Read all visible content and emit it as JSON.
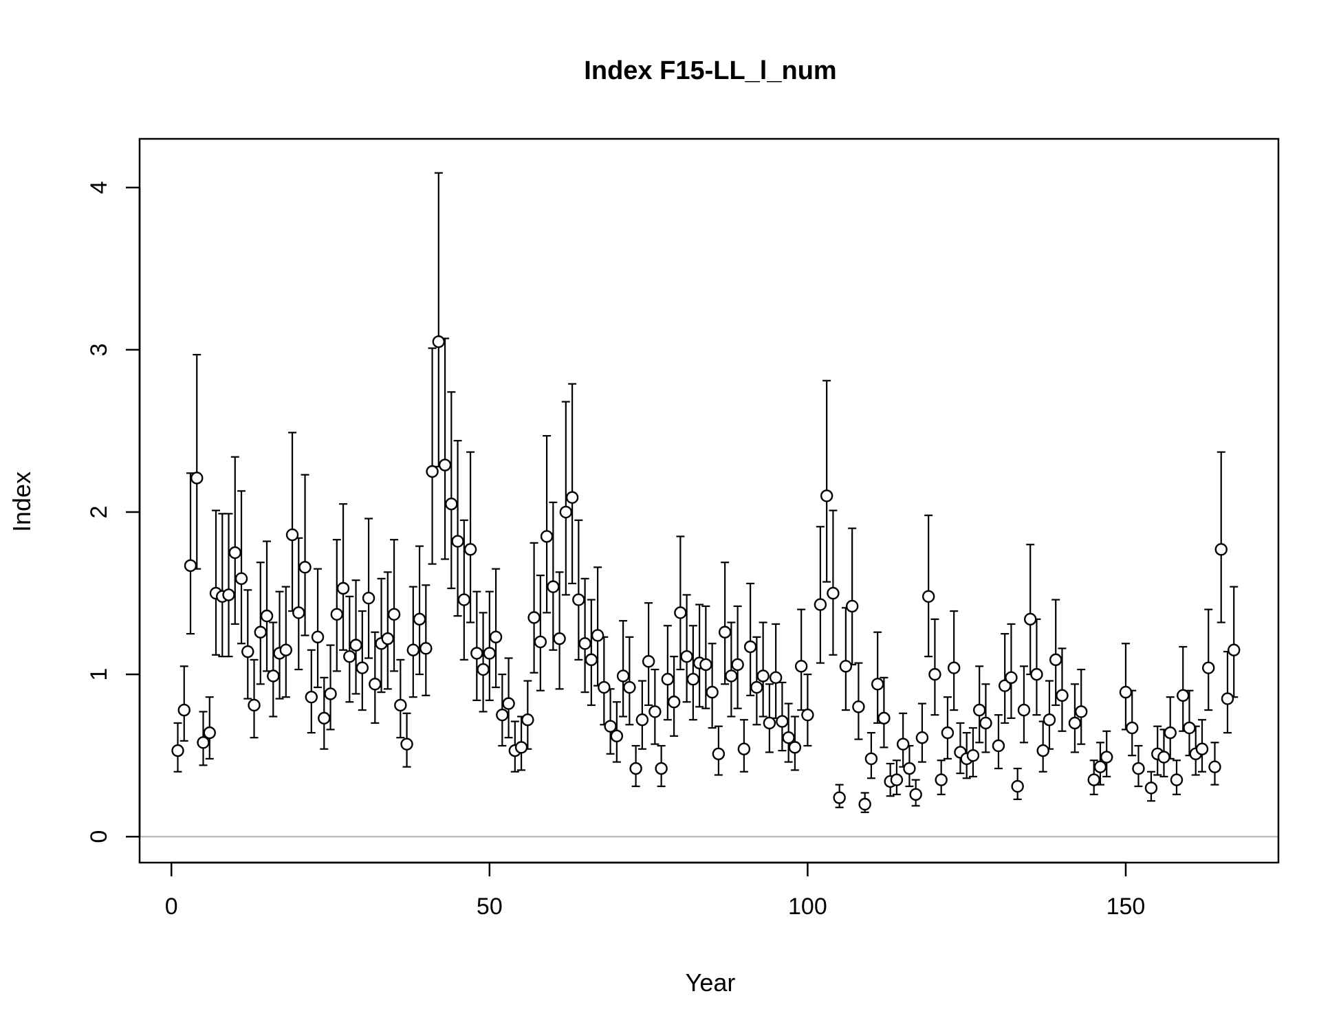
{
  "chart_data": {
    "type": "scatter",
    "title": "Index F15-LL_l_num",
    "xlabel": "Year",
    "ylabel": "Index",
    "xlim": [
      -5,
      174
    ],
    "ylim": [
      -0.16,
      4.3
    ],
    "x_ticks": [
      0,
      50,
      100,
      150
    ],
    "x_tick_labels": [
      "0",
      "50",
      "100",
      "150"
    ],
    "y_ticks": [
      0,
      1,
      2,
      3,
      4
    ],
    "y_tick_labels": [
      "0",
      "1",
      "2",
      "3",
      "4"
    ],
    "reference_line_y": 0,
    "colors": {
      "points": "#000000",
      "fill": "#ffffff",
      "reference_line": "#bebebe"
    },
    "x": [
      1,
      2,
      3,
      4,
      5,
      6,
      7,
      8,
      9,
      10,
      11,
      12,
      13,
      14,
      15,
      16,
      17,
      18,
      19,
      20,
      21,
      22,
      23,
      24,
      25,
      26,
      27,
      28,
      29,
      30,
      31,
      32,
      33,
      34,
      35,
      36,
      37,
      38,
      39,
      40,
      41,
      42,
      43,
      44,
      45,
      46,
      47,
      48,
      49,
      50,
      51,
      52,
      53,
      54,
      55,
      56,
      57,
      58,
      59,
      60,
      61,
      62,
      63,
      64,
      65,
      66,
      67,
      68,
      69,
      70,
      71,
      72,
      73,
      74,
      75,
      76,
      77,
      78,
      79,
      80,
      81,
      82,
      83,
      84,
      85,
      86,
      87,
      88,
      89,
      90,
      91,
      92,
      93,
      94,
      95,
      96,
      97,
      98,
      99,
      100,
      102,
      103,
      104,
      105,
      106,
      107,
      108,
      109,
      110,
      111,
      112,
      113,
      114,
      115,
      116,
      117,
      118,
      119,
      120,
      121,
      122,
      123,
      124,
      125,
      126,
      127,
      128,
      130,
      131,
      132,
      133,
      134,
      135,
      136,
      137,
      138,
      139,
      140,
      142,
      143,
      145,
      146,
      147,
      150,
      151,
      152,
      154,
      155,
      156,
      157,
      158,
      159,
      160,
      161,
      162,
      163,
      164,
      165,
      166,
      167
    ],
    "y": [
      0.53,
      0.78,
      1.67,
      2.21,
      0.58,
      0.64,
      1.5,
      1.48,
      1.49,
      1.75,
      1.59,
      1.14,
      0.81,
      1.26,
      1.36,
      0.99,
      1.13,
      1.15,
      1.86,
      1.38,
      1.66,
      0.86,
      1.23,
      0.73,
      0.88,
      1.37,
      1.53,
      1.11,
      1.18,
      1.04,
      1.47,
      0.94,
      1.19,
      1.22,
      1.37,
      0.81,
      0.57,
      1.15,
      1.34,
      1.16,
      2.25,
      3.05,
      2.29,
      2.05,
      1.82,
      1.46,
      1.77,
      1.13,
      1.03,
      1.13,
      1.23,
      0.75,
      0.82,
      0.53,
      0.55,
      0.72,
      1.35,
      1.2,
      1.85,
      1.54,
      1.22,
      2.0,
      2.09,
      1.46,
      1.19,
      1.09,
      1.24,
      0.92,
      0.68,
      0.62,
      0.99,
      0.92,
      0.42,
      0.72,
      1.08,
      0.77,
      0.42,
      0.97,
      0.83,
      1.38,
      1.11,
      0.97,
      1.07,
      1.06,
      0.89,
      0.51,
      1.26,
      0.99,
      1.06,
      0.54,
      1.17,
      0.92,
      0.99,
      0.7,
      0.98,
      0.71,
      0.61,
      0.55,
      1.05,
      0.75,
      1.43,
      2.1,
      1.5,
      0.24,
      1.05,
      1.42,
      0.8,
      0.2,
      0.48,
      0.94,
      0.73,
      0.34,
      0.35,
      0.57,
      0.42,
      0.26,
      0.61,
      1.48,
      1.0,
      0.35,
      0.64,
      1.04,
      0.52,
      0.48,
      0.5,
      0.78,
      0.7,
      0.56,
      0.93,
      0.98,
      0.31,
      0.78,
      1.34,
      1.0,
      0.53,
      0.72,
      1.09,
      0.87,
      0.7,
      0.77,
      0.35,
      0.43,
      0.49,
      0.89,
      0.67,
      0.42,
      0.3,
      0.51,
      0.49,
      0.64,
      0.35,
      0.87,
      0.67,
      0.51,
      0.54,
      1.04,
      0.43,
      1.77,
      0.85,
      1.15
    ],
    "lower": [
      0.4,
      0.59,
      1.25,
      1.65,
      0.44,
      0.48,
      1.12,
      1.11,
      1.11,
      1.31,
      1.19,
      0.85,
      0.61,
      0.94,
      1.02,
      0.74,
      0.85,
      0.86,
      1.39,
      1.03,
      1.24,
      0.64,
      0.92,
      0.54,
      0.66,
      1.02,
      1.15,
      0.83,
      0.88,
      0.78,
      1.1,
      0.7,
      0.89,
      0.91,
      1.02,
      0.61,
      0.43,
      0.86,
      1.0,
      0.87,
      1.68,
      2.28,
      1.71,
      1.53,
      1.36,
      1.09,
      1.32,
      0.84,
      0.77,
      0.84,
      0.92,
      0.56,
      0.61,
      0.4,
      0.41,
      0.54,
      1.01,
      0.9,
      1.38,
      1.15,
      0.91,
      1.49,
      1.56,
      1.09,
      0.89,
      0.81,
      0.93,
      0.69,
      0.51,
      0.46,
      0.74,
      0.69,
      0.31,
      0.54,
      0.81,
      0.57,
      0.31,
      0.72,
      0.62,
      1.03,
      0.83,
      0.72,
      0.8,
      0.79,
      0.67,
      0.38,
      0.94,
      0.74,
      0.79,
      0.4,
      0.87,
      0.69,
      0.74,
      0.52,
      0.73,
      0.53,
      0.46,
      0.41,
      0.78,
      0.56,
      1.07,
      1.57,
      1.12,
      0.18,
      0.78,
      1.06,
      0.6,
      0.15,
      0.36,
      0.7,
      0.55,
      0.25,
      0.26,
      0.43,
      0.31,
      0.19,
      0.46,
      1.11,
      0.75,
      0.26,
      0.48,
      0.78,
      0.39,
      0.36,
      0.37,
      0.58,
      0.52,
      0.42,
      0.7,
      0.73,
      0.23,
      0.58,
      1.0,
      0.75,
      0.4,
      0.54,
      0.81,
      0.65,
      0.52,
      0.57,
      0.26,
      0.32,
      0.37,
      0.66,
      0.5,
      0.31,
      0.22,
      0.38,
      0.37,
      0.48,
      0.26,
      0.65,
      0.5,
      0.38,
      0.4,
      0.78,
      0.32,
      1.32,
      0.64,
      0.86
    ],
    "upper": [
      0.7,
      1.05,
      2.24,
      2.97,
      0.77,
      0.86,
      2.01,
      1.99,
      1.99,
      2.34,
      2.13,
      1.52,
      1.09,
      1.69,
      1.82,
      1.32,
      1.51,
      1.54,
      2.49,
      1.84,
      2.23,
      1.15,
      1.65,
      0.98,
      1.18,
      1.83,
      2.05,
      1.48,
      1.58,
      1.39,
      1.96,
      1.26,
      1.59,
      1.63,
      1.83,
      1.09,
      0.76,
      1.54,
      1.79,
      1.55,
      3.01,
      4.09,
      3.07,
      2.74,
      2.44,
      1.95,
      2.37,
      1.51,
      1.38,
      1.51,
      1.65,
      1.0,
      1.1,
      0.71,
      0.74,
      0.96,
      1.81,
      1.61,
      2.47,
      2.06,
      1.63,
      2.68,
      2.79,
      1.95,
      1.59,
      1.46,
      1.66,
      1.23,
      0.91,
      0.83,
      1.33,
      1.23,
      0.56,
      0.96,
      1.44,
      1.03,
      0.56,
      1.3,
      1.11,
      1.85,
      1.49,
      1.3,
      1.43,
      1.42,
      1.19,
      0.68,
      1.69,
      1.32,
      1.42,
      0.72,
      1.56,
      1.23,
      1.32,
      0.94,
      1.31,
      0.95,
      0.82,
      0.74,
      1.4,
      1.0,
      1.91,
      2.81,
      2.01,
      0.32,
      1.41,
      1.9,
      1.07,
      0.27,
      0.64,
      1.26,
      0.98,
      0.45,
      0.47,
      0.76,
      0.56,
      0.35,
      0.82,
      1.98,
      1.34,
      0.47,
      0.86,
      1.39,
      0.7,
      0.64,
      0.67,
      1.05,
      0.94,
      0.75,
      1.25,
      1.31,
      0.42,
      1.05,
      1.8,
      1.34,
      0.71,
      0.96,
      1.46,
      1.16,
      0.94,
      1.03,
      0.47,
      0.58,
      0.65,
      1.19,
      0.9,
      0.56,
      0.4,
      0.68,
      0.66,
      0.86,
      0.47,
      1.17,
      0.9,
      0.68,
      0.72,
      1.4,
      0.58,
      2.37,
      1.14,
      1.54
    ]
  }
}
